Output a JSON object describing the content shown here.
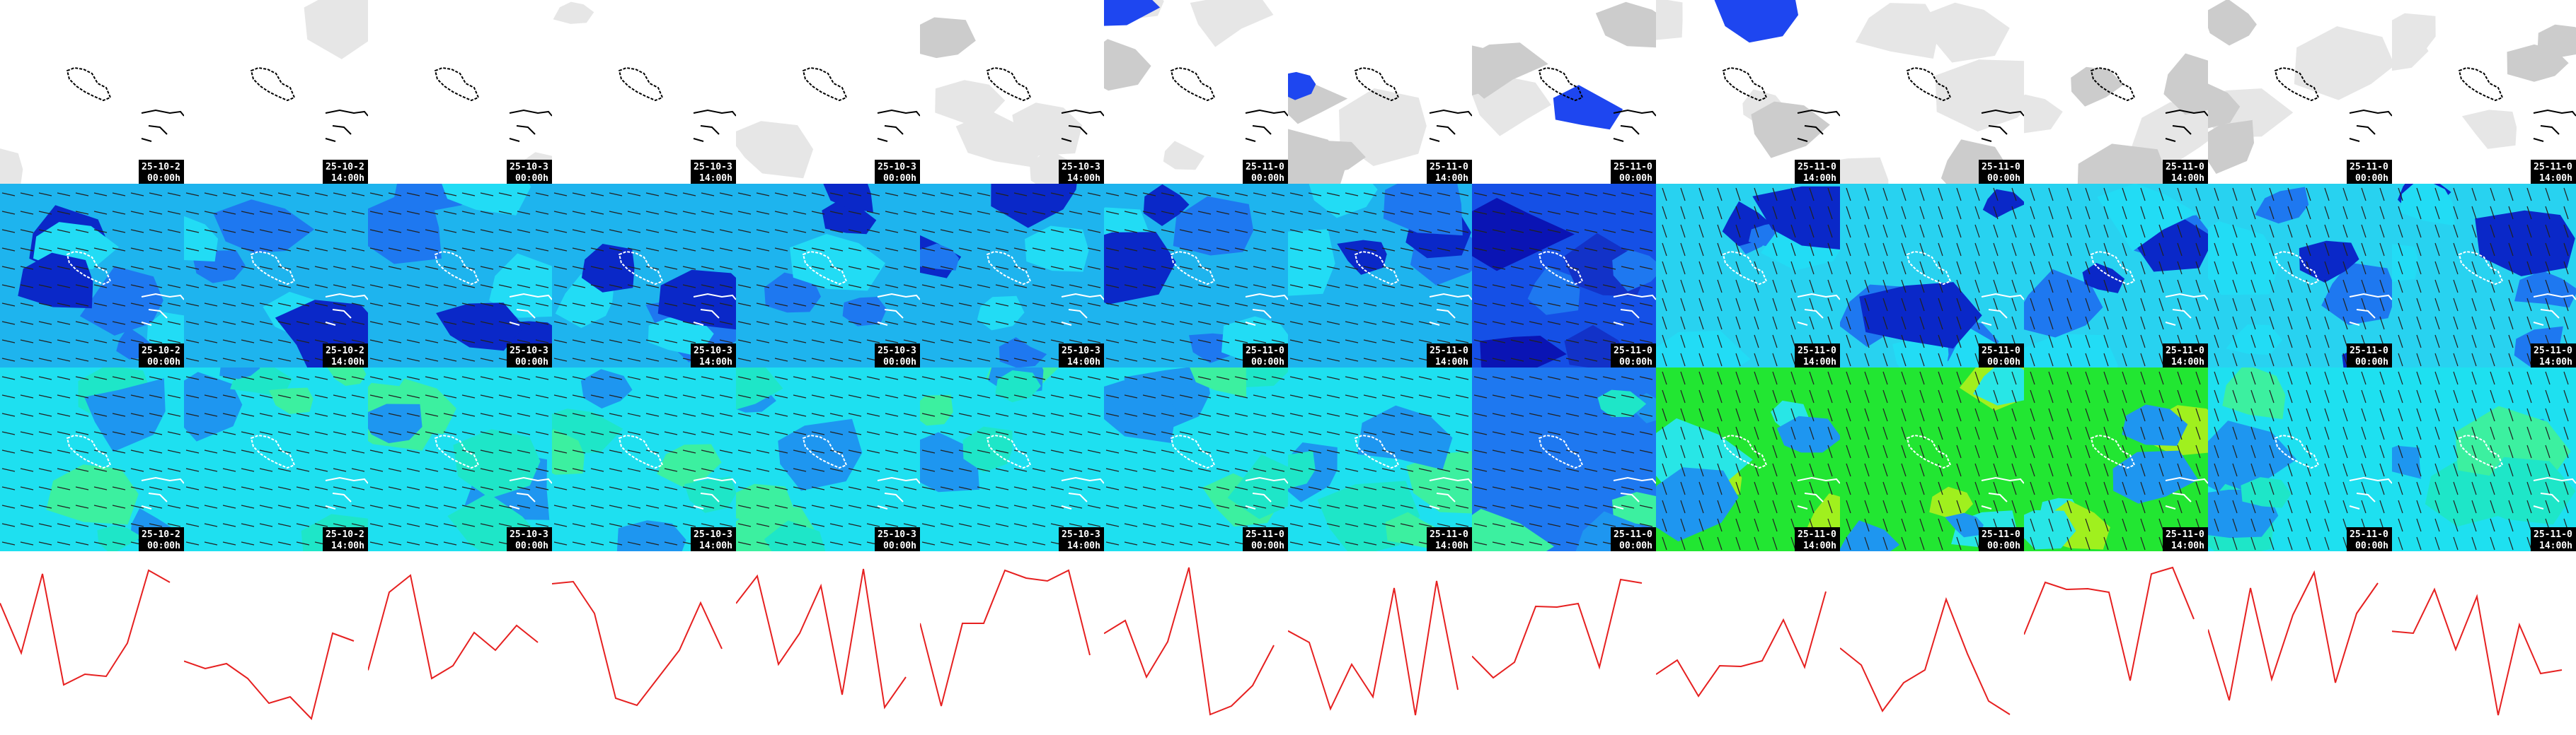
{
  "panels": [
    {
      "date": "25-10-2",
      "time": "00:00h"
    },
    {
      "date": "25-10-2",
      "time": "14:00h"
    },
    {
      "date": "25-10-3",
      "time": "00:00h"
    },
    {
      "date": "25-10-3",
      "time": "14:00h"
    },
    {
      "date": "25-10-3",
      "time": "00:00h"
    },
    {
      "date": "25-10-3",
      "time": "14:00h"
    },
    {
      "date": "25-11-0",
      "time": "00:00h"
    },
    {
      "date": "25-11-0",
      "time": "14:00h"
    },
    {
      "date": "25-11-0",
      "time": "00:00h"
    },
    {
      "date": "25-11-0",
      "time": "14:00h"
    },
    {
      "date": "25-11-0",
      "time": "00:00h"
    },
    {
      "date": "25-11-0",
      "time": "14:00h"
    },
    {
      "date": "25-11-0",
      "time": "00:00h"
    },
    {
      "date": "25-11-0",
      "time": "14:00h"
    }
  ]
}
